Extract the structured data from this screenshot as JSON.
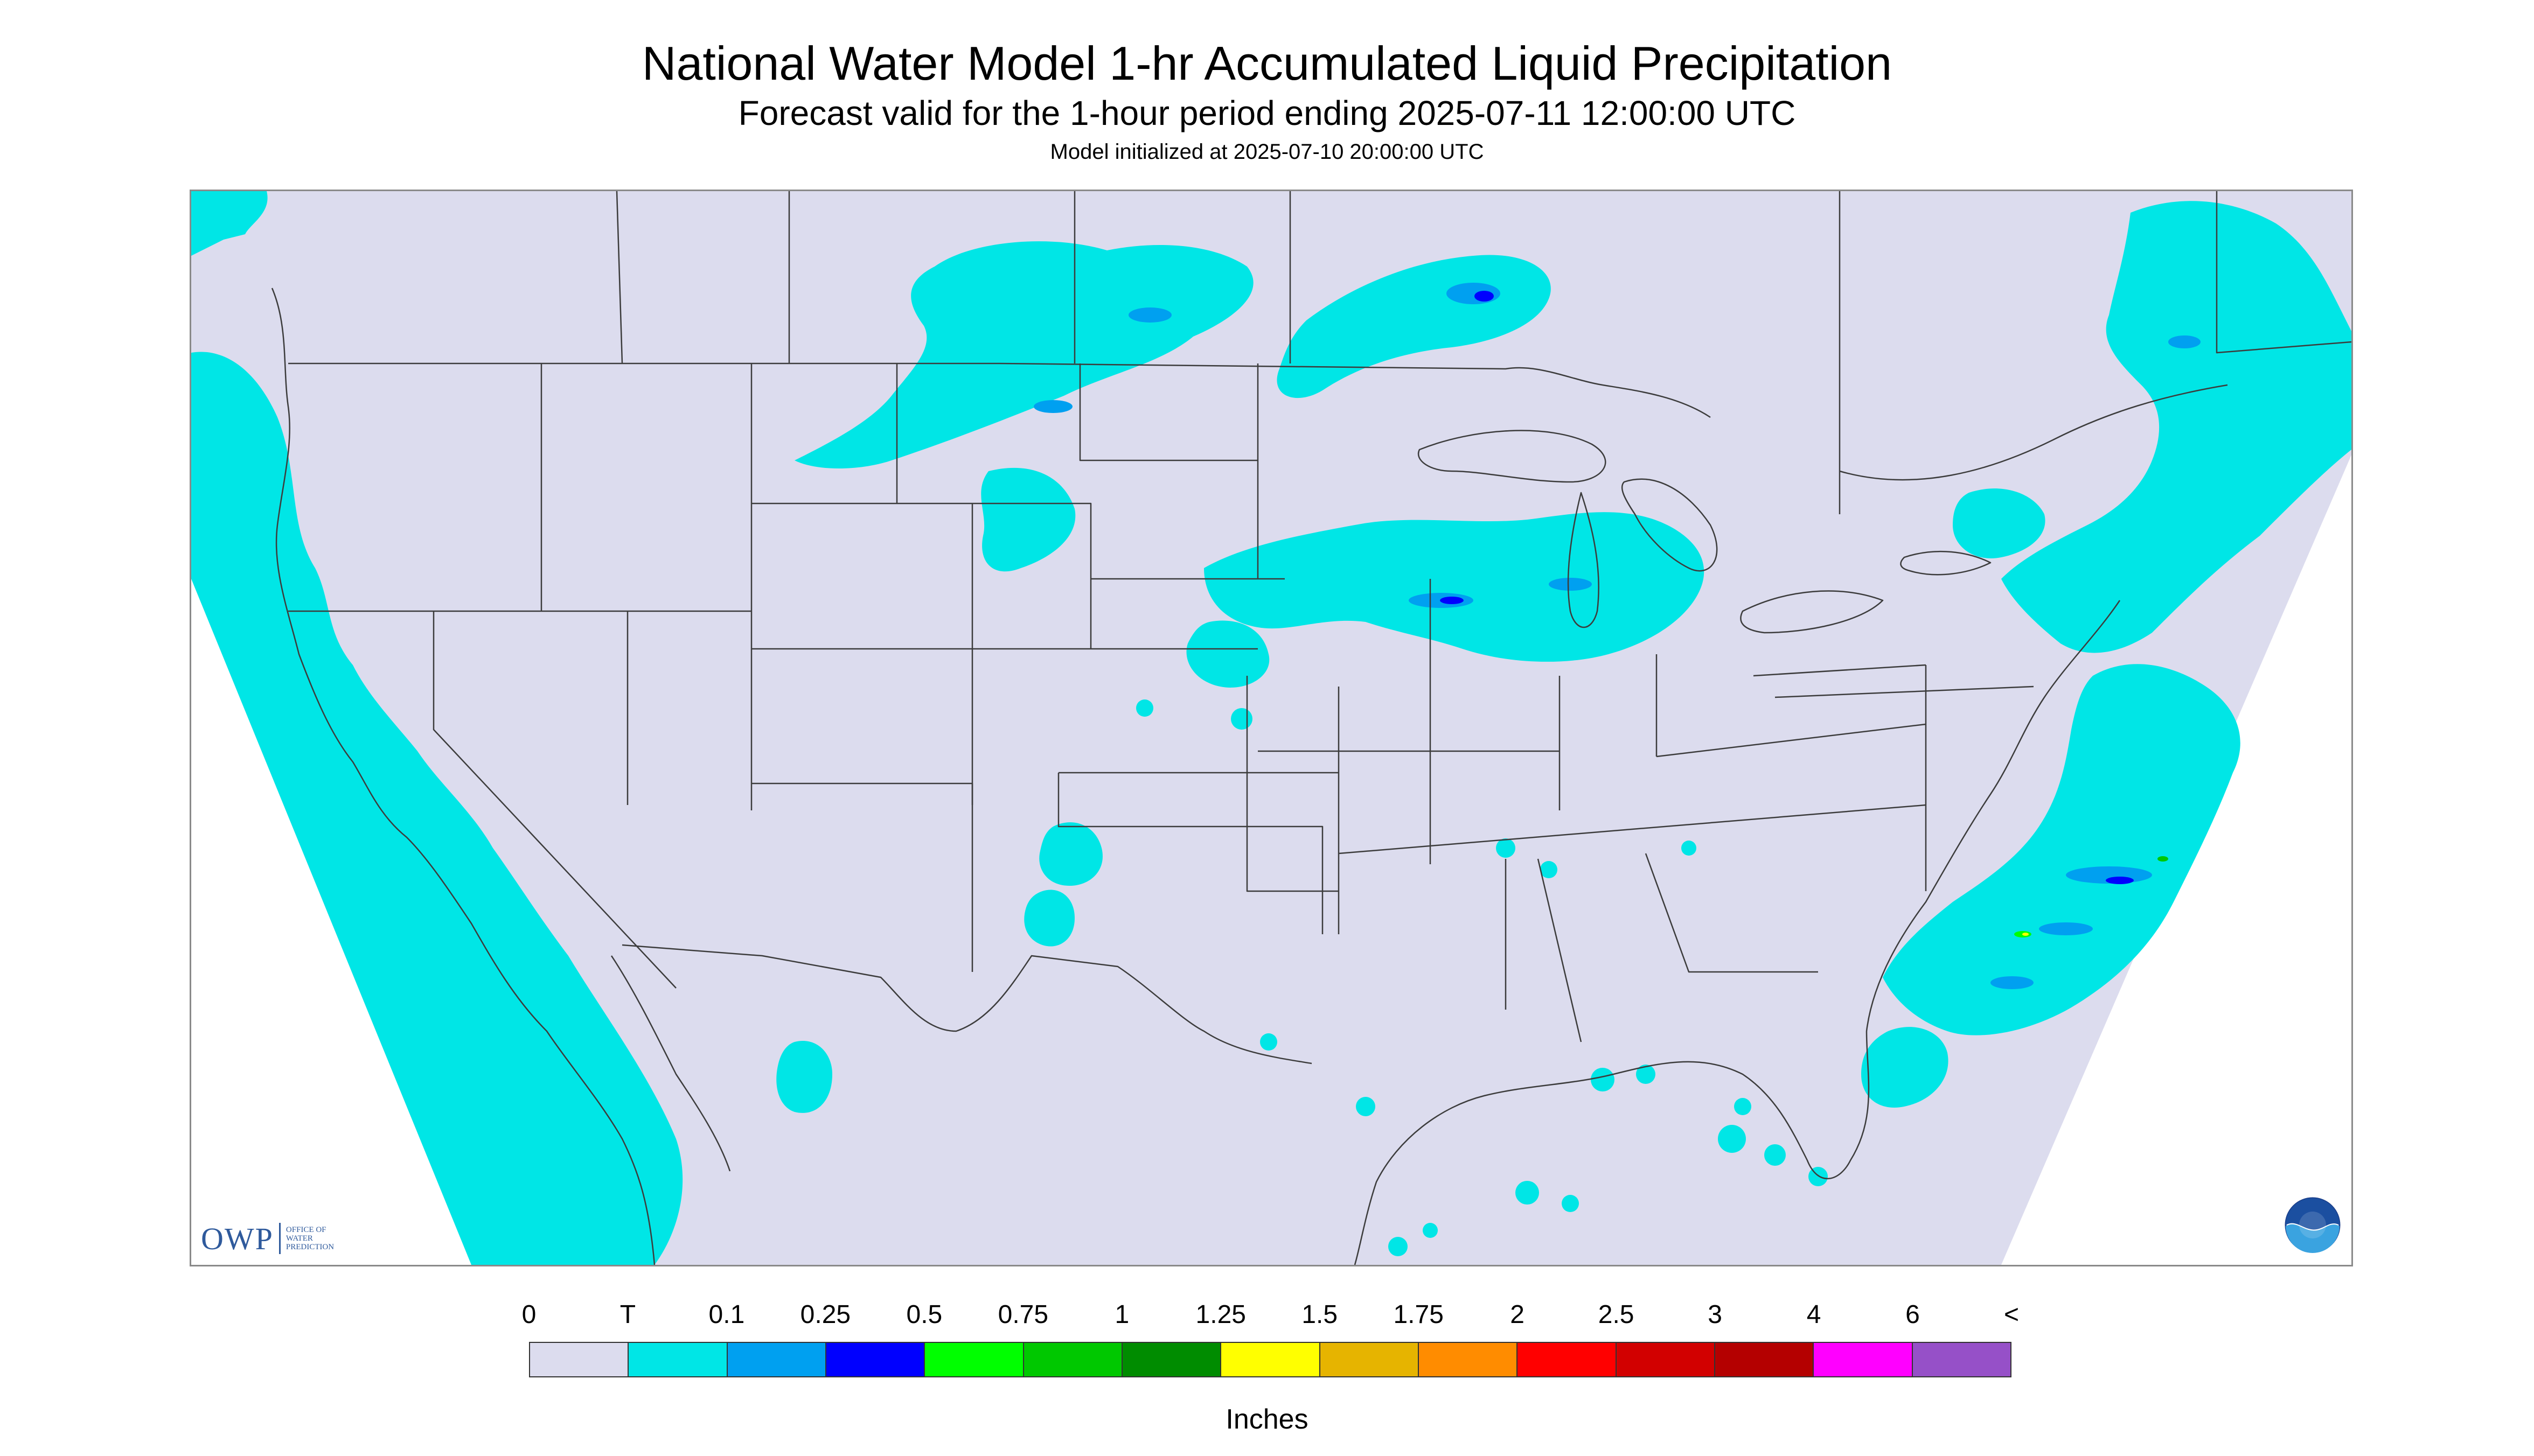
{
  "header": {
    "title": "National Water Model 1-hr Accumulated Liquid Precipitation",
    "subtitle": "Forecast valid for the 1-hour period ending 2025-07-11 12:00:00 UTC",
    "initialized": "Model initialized at 2025-07-10 20:00:00 UTC"
  },
  "logos": {
    "owp_mark": "OWP",
    "owp_text": [
      "OFFICE OF",
      "WATER",
      "PREDICTION"
    ],
    "noaa_text": "NOAA"
  },
  "legend": {
    "tick_labels": [
      "0",
      "T",
      "0.1",
      "0.25",
      "0.5",
      "0.75",
      "1",
      "1.25",
      "1.5",
      "1.75",
      "2",
      "2.5",
      "3",
      "4",
      "6",
      "<"
    ],
    "colors": [
      "#dcdcee",
      "#00e6e6",
      "#00a0f0",
      "#0000ff",
      "#00ff00",
      "#00c800",
      "#008c00",
      "#ffff00",
      "#e6b400",
      "#ff8c00",
      "#ff0000",
      "#d20000",
      "#b40000",
      "#ff00ff",
      "#9650c8"
    ],
    "units": "Inches"
  },
  "map": {
    "projection_fill": "#dcdcee",
    "outside_fill": "#ffffff",
    "boundary_color": "#3c3c3c",
    "features": [
      "Pacific offshore precipitation",
      "Northern Plains precipitation",
      "Upper Midwest / Great Lakes precipitation",
      "Northeast / Ontario precipitation",
      "Atlantic offshore precipitation",
      "Gulf coast scattered showers",
      "Southern Plains scattered showers"
    ]
  }
}
